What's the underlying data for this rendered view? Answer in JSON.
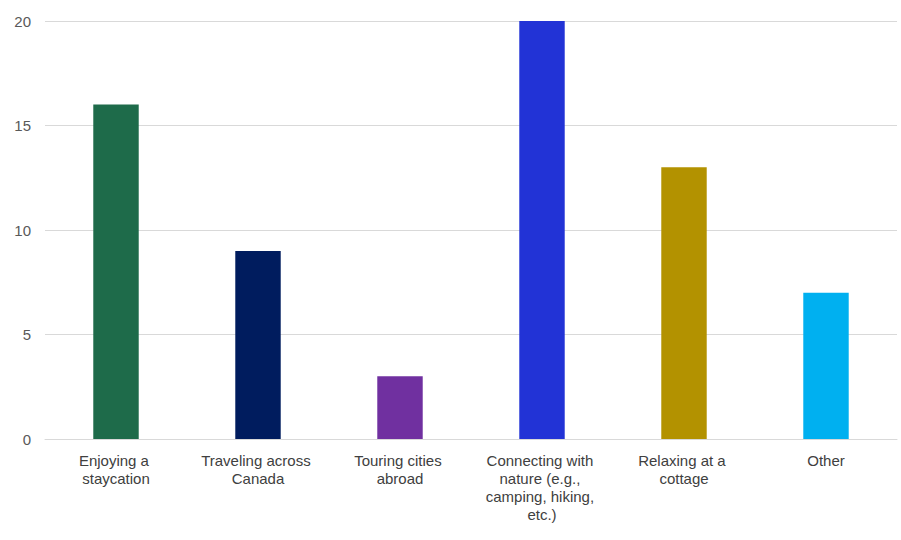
{
  "chart_data": {
    "type": "bar",
    "categories": [
      "Enjoying a staycation",
      "Traveling across Canada",
      "Touring cities abroad",
      "Connecting with nature (e.g., camping, hiking, etc.)",
      "Relaxing at a cottage",
      "Other"
    ],
    "values": [
      16,
      9,
      3,
      20,
      13,
      7
    ],
    "colors": [
      "#1e6b4a",
      "#001c5e",
      "#7030a0",
      "#2233d6",
      "#b39200",
      "#00b0f0"
    ],
    "ylim": [
      0,
      20
    ],
    "yticks": [
      0,
      5,
      10,
      15,
      20
    ],
    "grid": true
  }
}
